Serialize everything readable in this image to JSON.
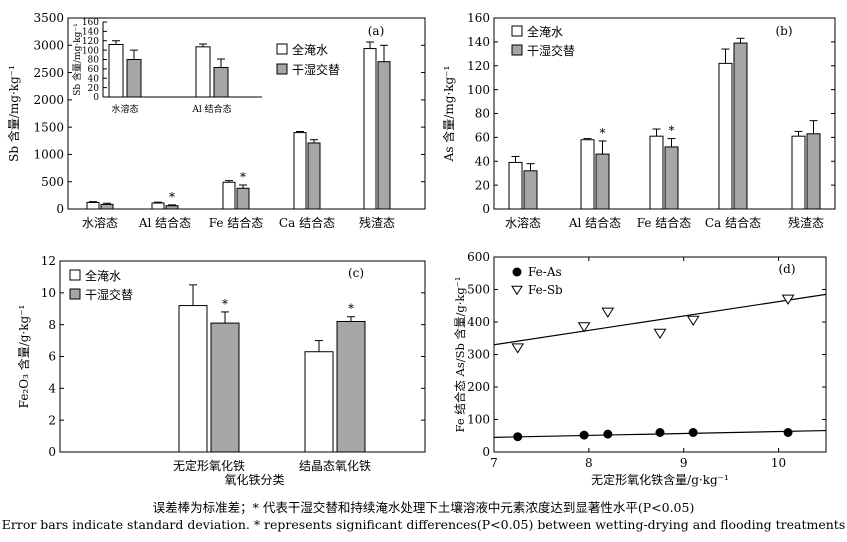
{
  "captions": {
    "zh": "误差棒为标准差；* 代表干湿交替和持续淹水处理下土壤溶液中元素浓度达到显著性水平(P<0.05)",
    "en": "Error bars indicate standard deviation. * represents significant differences(P<0.05) between wetting-drying and flooding treatments"
  },
  "chart_data": [
    {
      "id": "a",
      "type": "bar",
      "panel_label": "(a)",
      "ylabel": "Sb 含量/mg·kg⁻¹",
      "ylim": [
        0,
        3500
      ],
      "yticks": [
        0,
        500,
        1000,
        1500,
        2000,
        2500,
        3000,
        3500
      ],
      "categories": [
        "水溶态",
        "Al 结合态",
        "Fe 结合态",
        "Ca 结合态",
        "残渣态"
      ],
      "series": [
        {
          "name": "全淹水",
          "values": [
            120,
            110,
            490,
            1400,
            2940
          ],
          "err": [
            15,
            15,
            30,
            20,
            120
          ]
        },
        {
          "name": "干湿交替",
          "values": [
            85,
            60,
            380,
            1210,
            2700
          ],
          "err": [
            20,
            15,
            60,
            60,
            300
          ]
        }
      ],
      "significant": [
        1,
        2
      ],
      "legend": "right",
      "inset": {
        "type": "bar",
        "ylabel": "Sb 含量/mg·kg⁻¹",
        "ylim": [
          0,
          160
        ],
        "yticks": [
          0,
          20,
          40,
          60,
          80,
          100,
          120,
          140,
          160
        ],
        "categories": [
          "水溶态",
          "Al 结合态"
        ],
        "series": [
          {
            "name": "全淹水",
            "values": [
              112,
              107
            ],
            "err": [
              8,
              6
            ]
          },
          {
            "name": "干湿交替",
            "values": [
              80,
              63
            ],
            "err": [
              20,
              18
            ]
          }
        ]
      }
    },
    {
      "id": "b",
      "type": "bar",
      "panel_label": "(b)",
      "ylabel": "As 含量/mg·kg⁻¹",
      "ylim": [
        0,
        160
      ],
      "yticks": [
        0,
        20,
        40,
        60,
        80,
        100,
        120,
        140,
        160
      ],
      "categories": [
        "水溶态",
        "Al 结合态",
        "Fe 结合态",
        "Ca 结合态",
        "残渣态"
      ],
      "series": [
        {
          "name": "全淹水",
          "values": [
            39,
            58,
            61,
            122,
            61
          ],
          "err": [
            5,
            1,
            6,
            12,
            4
          ]
        },
        {
          "name": "干湿交替",
          "values": [
            32,
            46,
            52,
            139,
            63
          ],
          "err": [
            6,
            11,
            7,
            4,
            11
          ]
        }
      ],
      "significant": [
        1,
        2
      ],
      "legend": "top-left"
    },
    {
      "id": "c",
      "type": "bar",
      "panel_label": "(c)",
      "ylabel": "Fe₂O₃ 含量/g·kg⁻¹",
      "xlabel": "氧化铁分类",
      "ylim": [
        0,
        12
      ],
      "yticks": [
        0,
        2,
        4,
        6,
        8,
        10,
        12
      ],
      "categories": [
        "无定形氧化铁",
        "结晶态氧化铁"
      ],
      "series": [
        {
          "name": "全淹水",
          "values": [
            9.2,
            6.3
          ],
          "err": [
            1.3,
            0.7
          ]
        },
        {
          "name": "干湿交替",
          "values": [
            8.1,
            8.2
          ],
          "err": [
            0.7,
            0.3
          ]
        }
      ],
      "significant": [
        0,
        1
      ],
      "legend": "top-left"
    },
    {
      "id": "d",
      "type": "scatter",
      "panel_label": "(d)",
      "ylabel": "Fe 结合态 As/Sb 含量/g·kg⁻¹",
      "xlabel": "无定形氧化铁含量/g·kg⁻¹",
      "xlim": [
        7,
        10.5
      ],
      "xticks": [
        7,
        8,
        9,
        10
      ],
      "ylim": [
        0,
        600
      ],
      "yticks": [
        0,
        100,
        200,
        300,
        400,
        500,
        600
      ],
      "series": [
        {
          "name": "Fe-As",
          "marker": "filled-circle",
          "x": [
            7.25,
            7.95,
            8.2,
            8.75,
            9.1,
            10.1
          ],
          "y": [
            47,
            52,
            55,
            60,
            60,
            60
          ],
          "fit": {
            "x": [
              7,
              10.5
            ],
            "y": [
              45,
              66
            ]
          }
        },
        {
          "name": "Fe-Sb",
          "marker": "open-triangle-down",
          "x": [
            7.25,
            7.95,
            8.2,
            8.75,
            9.1,
            10.1
          ],
          "y": [
            320,
            385,
            430,
            365,
            405,
            470
          ],
          "fit": {
            "x": [
              7,
              10.5
            ],
            "y": [
              330,
              485
            ]
          }
        }
      ],
      "legend": "top-left"
    }
  ]
}
